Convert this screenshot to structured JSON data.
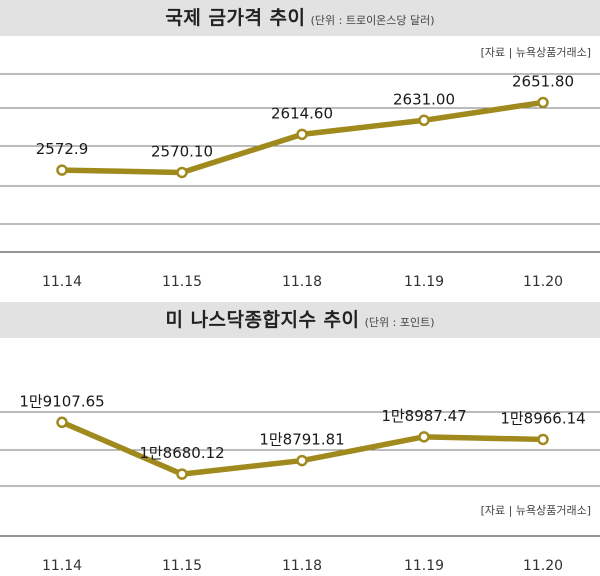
{
  "chart_data": [
    {
      "type": "line",
      "title": "국제 금가격 추이",
      "unit": "(단위 : 트로이온스당 달러)",
      "source": "[자료 | 뉴욕상품거래소]",
      "categories": [
        "11.14",
        "11.15",
        "11.18",
        "11.19",
        "11.20"
      ],
      "value_labels": [
        "2572.9",
        "2570.10",
        "2614.60",
        "2631.00",
        "2651.80"
      ],
      "values": [
        2572.9,
        2570.1,
        2614.6,
        2631.0,
        2651.8
      ],
      "ylim": [
        2510,
        2685
      ],
      "grid": true,
      "line_color": "#a08a1e"
    },
    {
      "type": "line",
      "title": "미 나스닥종합지수 추이",
      "unit": "(단위 : 포인트)",
      "source": "[자료 | 뉴욕상품거래소]",
      "categories": [
        "11.14",
        "11.15",
        "11.18",
        "11.19",
        "11.20"
      ],
      "value_labels": [
        "1만9107.65",
        "1만8680.12",
        "1만8791.81",
        "1만8987.47",
        "1만8966.14"
      ],
      "values": [
        19107.65,
        18680.12,
        18791.81,
        18987.47,
        18966.14
      ],
      "ylim": [
        18450,
        19440
      ],
      "grid": true,
      "line_color": "#a08a1e"
    }
  ]
}
